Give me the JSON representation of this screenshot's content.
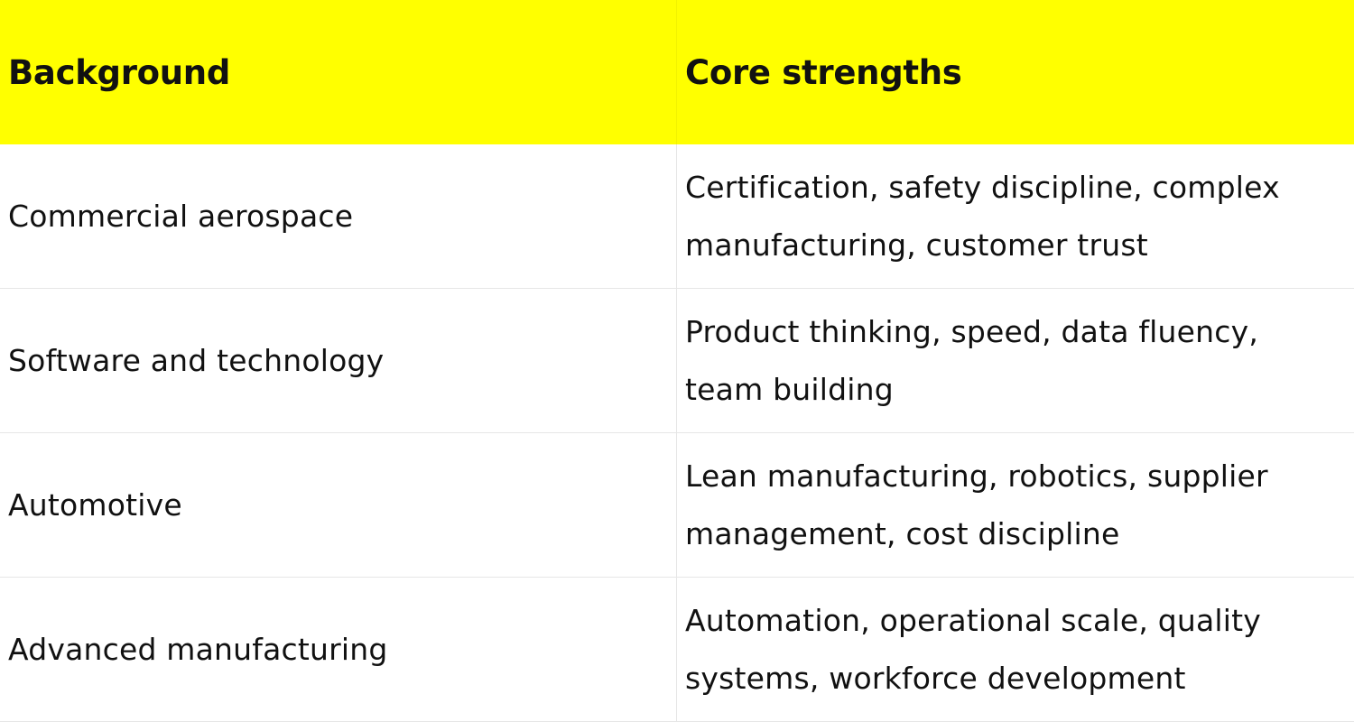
{
  "table": {
    "headers": [
      "Background",
      "Core strengths"
    ],
    "rows": [
      {
        "background": "Commercial aerospace",
        "strengths": "Certification, safety discipline, complex manufacturing, customer trust"
      },
      {
        "background": "Software and technology",
        "strengths": "Product thinking, speed, data fluency, team building"
      },
      {
        "background": "Automotive",
        "strengths": "Lean manufacturing, robotics, supplier management, cost discipline"
      },
      {
        "background": "Advanced manufacturing",
        "strengths": "Automation, operational scale, quality systems, workforce development"
      }
    ]
  },
  "colors": {
    "header_background": "#ffff00",
    "text": "#111111",
    "grid_lines": "#e6e6e6"
  }
}
